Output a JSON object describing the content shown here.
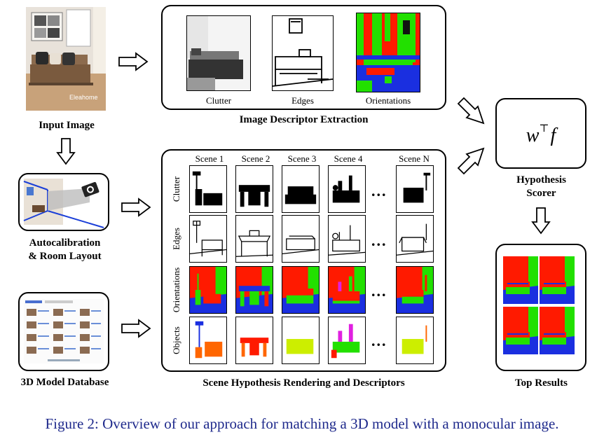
{
  "input_image": {
    "label": "Input Image",
    "watermark": "Eleahome"
  },
  "autocalibration": {
    "label_line1": "Autocalibration",
    "label_line2": "& Room Layout"
  },
  "model_database": {
    "label": "3D Model Database"
  },
  "descriptor_extraction": {
    "title": "Image Descriptor Extraction",
    "items": [
      "Clutter",
      "Edges",
      "Orientations"
    ]
  },
  "scene_rendering": {
    "title": "Scene Hypothesis Rendering and Descriptors",
    "scenes": [
      "Scene 1",
      "Scene 2",
      "Scene 3",
      "Scene 4",
      "Scene N"
    ],
    "rows": [
      "Clutter",
      "Edges",
      "Orientations",
      "Objects"
    ],
    "ellipsis": "..."
  },
  "scorer": {
    "formula_w": "w",
    "formula_sup": "⊤",
    "formula_f": "f",
    "label_line1": "Hypothesis",
    "label_line2": "Scorer"
  },
  "results": {
    "label": "Top Results"
  },
  "caption": "Figure 2: Overview of our approach for matching a 3D model with a monocular image.",
  "colors": {
    "red": "#ff1a00",
    "green": "#22e000",
    "blue": "#1a2fe0",
    "caption": "#1f2a8c",
    "yellow": "#ccee00",
    "magenta": "#e020e0",
    "orange": "#ff6600"
  }
}
